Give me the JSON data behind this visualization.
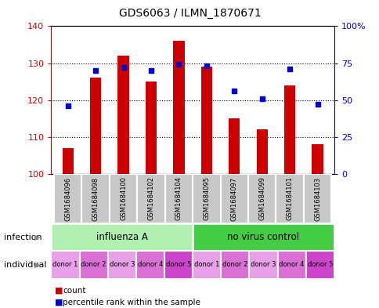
{
  "title": "GDS6063 / ILMN_1870671",
  "samples": [
    "GSM1684096",
    "GSM1684098",
    "GSM1684100",
    "GSM1684102",
    "GSM1684104",
    "GSM1684095",
    "GSM1684097",
    "GSM1684099",
    "GSM1684101",
    "GSM1684103"
  ],
  "counts": [
    107,
    126,
    132,
    125,
    136,
    129,
    115,
    112,
    124,
    108
  ],
  "percentiles": [
    46,
    70,
    72,
    70,
    74,
    73,
    56,
    51,
    71,
    47
  ],
  "ylim_left": [
    100,
    140
  ],
  "ylim_right": [
    0,
    100
  ],
  "yticks_left": [
    100,
    110,
    120,
    130,
    140
  ],
  "yticks_right": [
    0,
    25,
    50,
    75,
    100
  ],
  "infection_groups": [
    {
      "label": "influenza A",
      "start": 0,
      "end": 5,
      "color": "#b0f0b0"
    },
    {
      "label": "no virus control",
      "start": 5,
      "end": 10,
      "color": "#44cc44"
    }
  ],
  "individual_labels": [
    "donor 1",
    "donor 2",
    "donor 3",
    "donor 4",
    "donor 5",
    "donor 1",
    "donor 2",
    "donor 3",
    "donor 4",
    "donor 5"
  ],
  "individual_colors": [
    "#e8a0e8",
    "#da70d6",
    "#e8a0e8",
    "#da70d6",
    "#cc44cc",
    "#e8a0e8",
    "#da70d6",
    "#e8a0e8",
    "#da70d6",
    "#cc44cc"
  ],
  "bar_color": "#cc0000",
  "dot_color": "#0000cc",
  "sample_bg": "#c8c8c8",
  "left_axis_color": "#cc0000",
  "right_axis_color": "#0000cc",
  "legend_count_color": "#cc0000",
  "legend_pct_color": "#0000cc",
  "bar_width": 0.4
}
